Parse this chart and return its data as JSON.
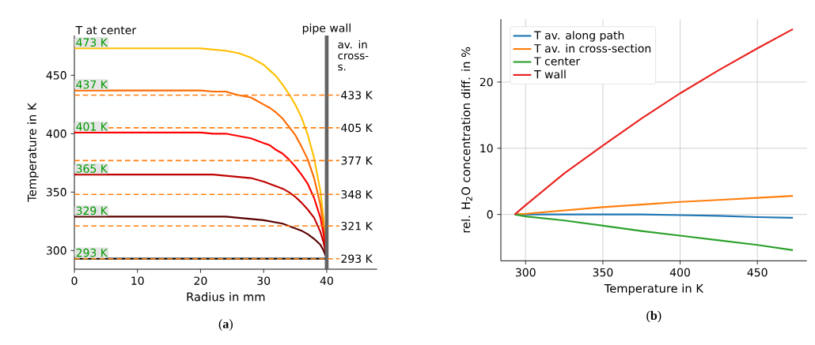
{
  "chart_data": [
    {
      "type": "line",
      "title": "(**a**)",
      "xlabel": "Radius in mm",
      "ylabel": "Temperature in K",
      "x": [
        0,
        10,
        15,
        20,
        22,
        24,
        26,
        28,
        30,
        31,
        32,
        33,
        34,
        35,
        36,
        37,
        38,
        39,
        39.5,
        40
      ],
      "series": [
        {
          "color": "#ffbf00",
          "values": [
            473,
            473,
            473,
            473,
            472,
            471,
            469,
            465,
            459,
            454,
            449,
            442,
            434,
            425,
            414,
            399,
            379,
            351,
            327,
            293
          ]
        },
        {
          "color": "#ff6a00",
          "values": [
            437,
            437,
            437,
            437,
            436,
            436,
            433,
            431,
            425,
            422,
            418,
            413,
            406,
            399,
            389,
            378,
            362,
            339,
            320,
            293
          ]
        },
        {
          "color": "#ff0000",
          "values": [
            401,
            401,
            401,
            401,
            400,
            400,
            398,
            396,
            392,
            390,
            386,
            383,
            378,
            372,
            365,
            357,
            345,
            328,
            314,
            293
          ]
        },
        {
          "color": "#c00000",
          "values": [
            365,
            365,
            365,
            365,
            365,
            364,
            363,
            362,
            359,
            357,
            355,
            353,
            350,
            346,
            341,
            335,
            328,
            316,
            307,
            293
          ]
        },
        {
          "color": "#5a0000",
          "values": [
            329,
            329,
            329,
            329,
            329,
            329,
            328,
            327,
            326,
            325,
            324,
            323,
            321,
            319,
            317,
            314,
            310,
            305,
            300,
            293
          ]
        },
        {
          "color": "#000000",
          "values": [
            293,
            293,
            293,
            293,
            293,
            293,
            293,
            293,
            293,
            293,
            293,
            293,
            293,
            293,
            293,
            293,
            293,
            293,
            293,
            293
          ]
        }
      ],
      "xlim": [
        0,
        48
      ],
      "ylim": [
        284,
        484
      ],
      "xticks": [
        0,
        10,
        20,
        30,
        40
      ],
      "yticks": [
        300,
        350,
        400,
        450
      ],
      "ref_lines": [
        {
          "axis": "x",
          "value": 40,
          "label": "pipe wall",
          "color": "#646464",
          "line_style": "solid"
        },
        {
          "axis": "y",
          "value": 433,
          "label": "433 K",
          "color": "#ff7f0e",
          "line_style": "dashed"
        },
        {
          "axis": "y",
          "value": 405,
          "label": "405 K",
          "color": "#ff7f0e",
          "line_style": "dashed"
        },
        {
          "axis": "y",
          "value": 377,
          "label": "377 K",
          "color": "#ff7f0e",
          "line_style": "dashed"
        },
        {
          "axis": "y",
          "value": 348,
          "label": "348 K",
          "color": "#ff7f0e",
          "line_style": "dashed"
        },
        {
          "axis": "y",
          "value": 321,
          "label": "321 K",
          "color": "#ff7f0e",
          "line_style": "dashed"
        },
        {
          "axis": "y",
          "value": 293,
          "label": "293 K",
          "color": "#ff7f0e",
          "line_style": "dashed"
        }
      ],
      "annotations": [
        "T at center",
        "av. in cross-s.",
        {
          "text": "473 K",
          "y": 473
        },
        {
          "text": "437 K",
          "y": 437
        },
        {
          "text": "401 K",
          "y": 401
        },
        {
          "text": "365 K",
          "y": 365
        },
        {
          "text": "329 K",
          "y": 329
        },
        {
          "text": "293 K",
          "y": 293
        }
      ]
    },
    {
      "type": "line",
      "title": "(**b**)",
      "xlabel": "Temperature in K",
      "ylabel": "rel. H$_{2}$O concentration diff. in %",
      "x": [
        293,
        300,
        325,
        350,
        375,
        400,
        425,
        450,
        473
      ],
      "series": [
        {
          "name": "T av. along path",
          "color": "#1f77b4",
          "values": [
            0,
            0,
            0,
            0,
            0,
            -0.1,
            -0.2,
            -0.4,
            -0.5
          ]
        },
        {
          "name": "T av. in cross-section",
          "color": "#ff7f0e",
          "values": [
            0,
            0.1,
            0.6,
            1.1,
            1.5,
            1.9,
            2.2,
            2.5,
            2.8
          ]
        },
        {
          "name": "T center",
          "color": "#2ca02c",
          "values": [
            0,
            -0.3,
            -0.9,
            -1.7,
            -2.5,
            -3.2,
            -3.9,
            -4.6,
            -5.4
          ]
        },
        {
          "name": "T wall",
          "color": "#e8221f",
          "values": [
            0,
            1.4,
            6.2,
            10.4,
            14.5,
            18.3,
            21.8,
            25.1,
            28.0
          ]
        }
      ],
      "xlim": [
        284,
        482
      ],
      "ylim": [
        -7,
        29.5
      ],
      "xticks": [
        300,
        350,
        400,
        450
      ],
      "yticks": [
        0,
        10,
        20
      ],
      "grid": true,
      "legend": "top left"
    }
  ]
}
